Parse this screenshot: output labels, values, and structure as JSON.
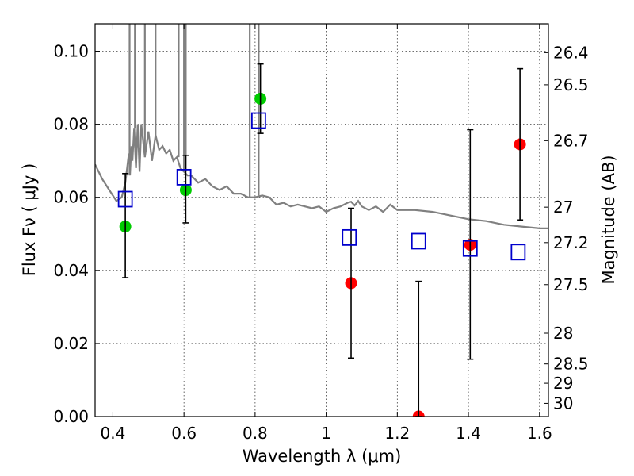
{
  "chart_data": {
    "type": "scatter",
    "title": "",
    "xlabel": "Wavelength  λ (μm)",
    "ylabel": "Flux  Fν  ( μJy )",
    "y2label": "Magnitude (AB)",
    "xlim": [
      0.35,
      1.625
    ],
    "ylim": [
      0.0,
      0.1075
    ],
    "xticks": [
      0.4,
      0.6,
      0.8,
      1.0,
      1.2,
      1.4,
      1.6
    ],
    "xtick_labels": [
      "0.4",
      "0.6",
      "0.8",
      "1",
      "1.2",
      "1.4",
      "1.6"
    ],
    "yticks": [
      0.0,
      0.02,
      0.04,
      0.06,
      0.08,
      0.1
    ],
    "ytick_labels": [
      "0.00",
      "0.02",
      "0.04",
      "0.06",
      "0.08",
      "0.10"
    ],
    "y2ticks": [
      {
        "label": "26.4",
        "flux": 0.0996
      },
      {
        "label": "26.5",
        "flux": 0.0908
      },
      {
        "label": "26.7",
        "flux": 0.0755
      },
      {
        "label": "27",
        "flux": 0.0573
      },
      {
        "label": "27.2",
        "flux": 0.0476
      },
      {
        "label": "27.5",
        "flux": 0.0361
      },
      {
        "label": "28",
        "flux": 0.0228
      },
      {
        "label": "28.5",
        "flux": 0.0144
      },
      {
        "label": "29",
        "flux": 0.0091
      },
      {
        "label": "30",
        "flux": 0.0036
      }
    ],
    "grid": true,
    "colors": {
      "model_line": "#808080",
      "green_points": "#00cc00",
      "red_points": "#ff0000",
      "model_squares": "#0000cc",
      "errorbars": "#000000"
    },
    "series": [
      {
        "kind": "line",
        "x": [
          0.35,
          0.37,
          0.39,
          0.41,
          0.425,
          0.435,
          0.44,
          0.445,
          0.448,
          0.452,
          0.455,
          0.46,
          0.465,
          0.47,
          0.475,
          0.48,
          0.49,
          0.5,
          0.51,
          0.52,
          0.53,
          0.54,
          0.55,
          0.56,
          0.57,
          0.58,
          0.59,
          0.6,
          0.61,
          0.62,
          0.64,
          0.66,
          0.68,
          0.7,
          0.72,
          0.74,
          0.76,
          0.78,
          0.8,
          0.82,
          0.84,
          0.86,
          0.88,
          0.9,
          0.92,
          0.94,
          0.96,
          0.98,
          1.0,
          1.02,
          1.04,
          1.06,
          1.07,
          1.08,
          1.09,
          1.1,
          1.12,
          1.14,
          1.16,
          1.18,
          1.2,
          1.25,
          1.3,
          1.35,
          1.4,
          1.45,
          1.5,
          1.55,
          1.6,
          1.625
        ],
        "y": [
          0.069,
          0.065,
          0.062,
          0.059,
          0.06,
          0.064,
          0.068,
          0.072,
          0.066,
          0.074,
          0.07,
          0.079,
          0.068,
          0.08,
          0.067,
          0.08,
          0.071,
          0.078,
          0.07,
          0.077,
          0.073,
          0.074,
          0.072,
          0.073,
          0.07,
          0.071,
          0.068,
          0.067,
          0.066,
          0.066,
          0.064,
          0.065,
          0.063,
          0.062,
          0.063,
          0.061,
          0.061,
          0.06,
          0.06,
          0.0605,
          0.06,
          0.058,
          0.0585,
          0.0575,
          0.058,
          0.0575,
          0.057,
          0.0575,
          0.056,
          0.057,
          0.0575,
          0.0585,
          0.0588,
          0.0578,
          0.059,
          0.0575,
          0.0565,
          0.0575,
          0.056,
          0.058,
          0.0565,
          0.0565,
          0.056,
          0.055,
          0.054,
          0.0535,
          0.0525,
          0.052,
          0.0515,
          0.0515
        ],
        "spikes": [
          0.447,
          0.462,
          0.49,
          0.52,
          0.585,
          0.6,
          0.605,
          0.785,
          0.81
        ]
      },
      {
        "kind": "points",
        "color": "green",
        "points": [
          {
            "x": 0.435,
            "y": 0.052
          },
          {
            "x": 0.605,
            "y": 0.062
          },
          {
            "x": 0.815,
            "y": 0.087
          }
        ]
      },
      {
        "kind": "points",
        "color": "red",
        "points": [
          {
            "x": 1.07,
            "y": 0.0365
          },
          {
            "x": 1.26,
            "y": 0.0
          },
          {
            "x": 1.405,
            "y": 0.047
          },
          {
            "x": 1.545,
            "y": 0.0745
          }
        ]
      },
      {
        "kind": "errorbars",
        "bars": [
          {
            "x": 0.435,
            "low": 0.038,
            "high": 0.0665
          },
          {
            "x": 0.605,
            "low": 0.053,
            "high": 0.0715
          },
          {
            "x": 0.815,
            "low": 0.0775,
            "high": 0.0965
          },
          {
            "x": 1.07,
            "low": 0.016,
            "high": 0.057
          },
          {
            "x": 1.26,
            "low": 0.0,
            "high": 0.037
          },
          {
            "x": 1.405,
            "low": 0.0157,
            "high": 0.0785
          },
          {
            "x": 1.545,
            "low": 0.0538,
            "high": 0.0952
          }
        ]
      },
      {
        "kind": "squares",
        "points": [
          {
            "x": 0.435,
            "y": 0.0595
          },
          {
            "x": 0.6,
            "y": 0.0655
          },
          {
            "x": 0.81,
            "y": 0.081
          },
          {
            "x": 1.065,
            "y": 0.049
          },
          {
            "x": 1.26,
            "y": 0.048
          },
          {
            "x": 1.405,
            "y": 0.046
          },
          {
            "x": 1.54,
            "y": 0.045
          }
        ]
      }
    ]
  }
}
